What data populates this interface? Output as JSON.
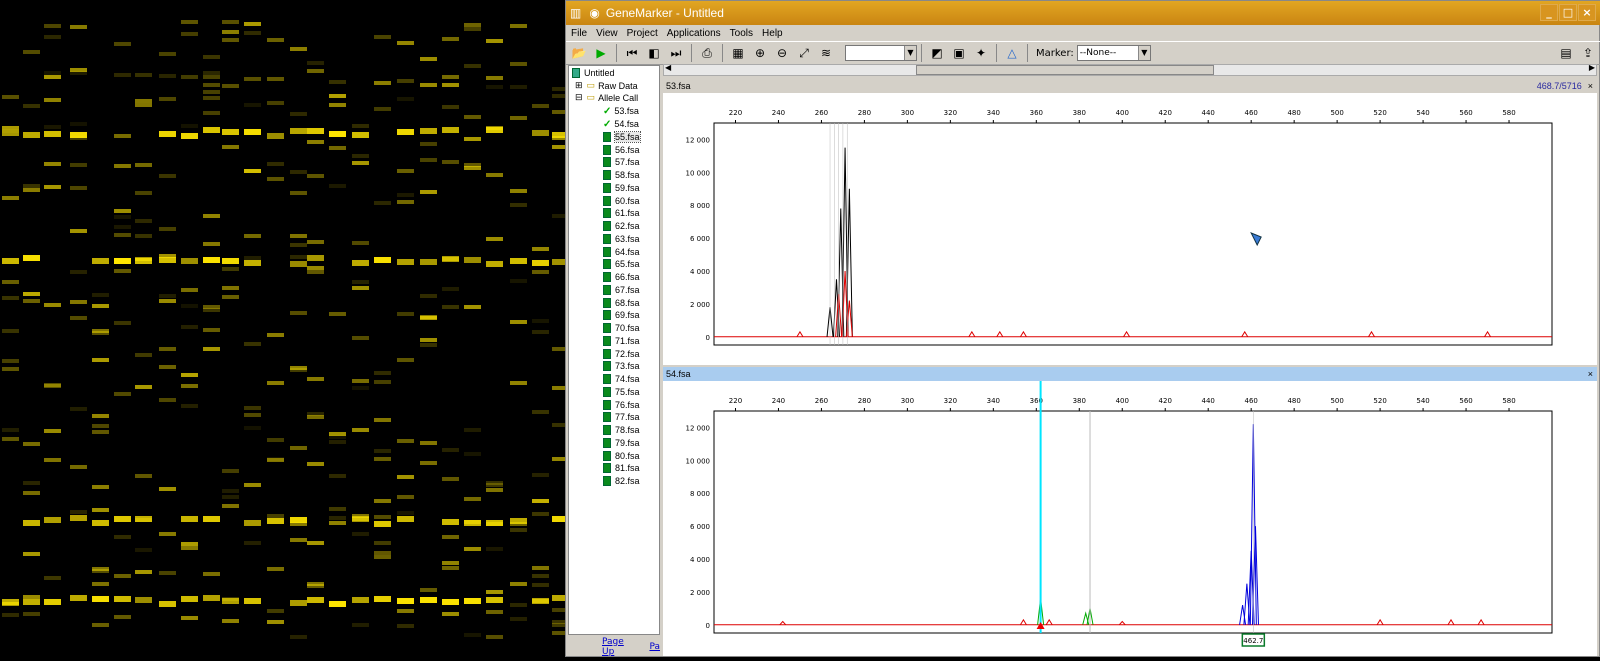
{
  "window": {
    "title": "GeneMarker - Untitled"
  },
  "menu": [
    "File",
    "View",
    "Project",
    "Applications",
    "Tools",
    "Help"
  ],
  "toolbar": {
    "marker_label": "Marker:",
    "marker_value": "--None--"
  },
  "tree": {
    "root": "Untitled",
    "raw": "Raw Data",
    "allele": "Allele Call",
    "files": [
      "53.fsa",
      "54.fsa",
      "55.fsa",
      "56.fsa",
      "57.fsa",
      "58.fsa",
      "59.fsa",
      "60.fsa",
      "61.fsa",
      "62.fsa",
      "63.fsa",
      "64.fsa",
      "65.fsa",
      "66.fsa",
      "67.fsa",
      "68.fsa",
      "69.fsa",
      "70.fsa",
      "71.fsa",
      "72.fsa",
      "73.fsa",
      "74.fsa",
      "75.fsa",
      "76.fsa",
      "77.fsa",
      "78.fsa",
      "79.fsa",
      "80.fsa",
      "81.fsa",
      "82.fsa"
    ]
  },
  "links": {
    "page_up": "Page Up",
    "pg": "Pa"
  },
  "panes": [
    {
      "name": "53.fsa",
      "status": "468.7/5716",
      "close": "×"
    },
    {
      "name": "54.fsa",
      "status": "",
      "close": "×",
      "peak_label": "462.7"
    }
  ],
  "chart_data": {
    "type": "line",
    "x_ticks": [
      220,
      240,
      260,
      280,
      300,
      320,
      340,
      360,
      380,
      400,
      420,
      440,
      460,
      480,
      500,
      520,
      540,
      560,
      580
    ],
    "y_ticks": [
      "12 000",
      "10 000",
      "8 000",
      "6 000",
      "4 000",
      "2 000",
      "0"
    ],
    "xlim": [
      210,
      600
    ],
    "ylim": [
      -500,
      13000
    ],
    "series": [
      {
        "pane": 0,
        "color": "#000000",
        "peaks": [
          [
            264,
            1800
          ],
          [
            267,
            3500
          ],
          [
            269,
            7800
          ],
          [
            271,
            11500
          ],
          [
            273,
            9000
          ]
        ]
      },
      {
        "pane": 0,
        "color": "#dd0000",
        "peaks": [
          [
            250,
            300
          ],
          [
            268,
            2600
          ],
          [
            271,
            4000
          ],
          [
            273,
            2200
          ],
          [
            330,
            300
          ],
          [
            343,
            300
          ],
          [
            354,
            300
          ],
          [
            402,
            300
          ],
          [
            457,
            300
          ],
          [
            516,
            300
          ],
          [
            570,
            300
          ]
        ]
      },
      {
        "pane": 1,
        "color": "#0000dd",
        "peaks": [
          [
            456,
            1200
          ],
          [
            458,
            2500
          ],
          [
            460,
            4500
          ],
          [
            461,
            12200
          ],
          [
            462,
            6000
          ]
        ]
      },
      {
        "pane": 1,
        "color": "#00aa00",
        "peaks": [
          [
            362,
            1600
          ],
          [
            383,
            700
          ],
          [
            385,
            1000
          ]
        ]
      },
      {
        "pane": 1,
        "color": "#dd0000",
        "peaks": [
          [
            242,
            200
          ],
          [
            354,
            300
          ],
          [
            366,
            300
          ],
          [
            400,
            200
          ],
          [
            520,
            300
          ],
          [
            553,
            300
          ],
          [
            567,
            300
          ]
        ]
      }
    ]
  },
  "colors": {
    "title": "#d7961c",
    "gel": "#ffe600"
  }
}
